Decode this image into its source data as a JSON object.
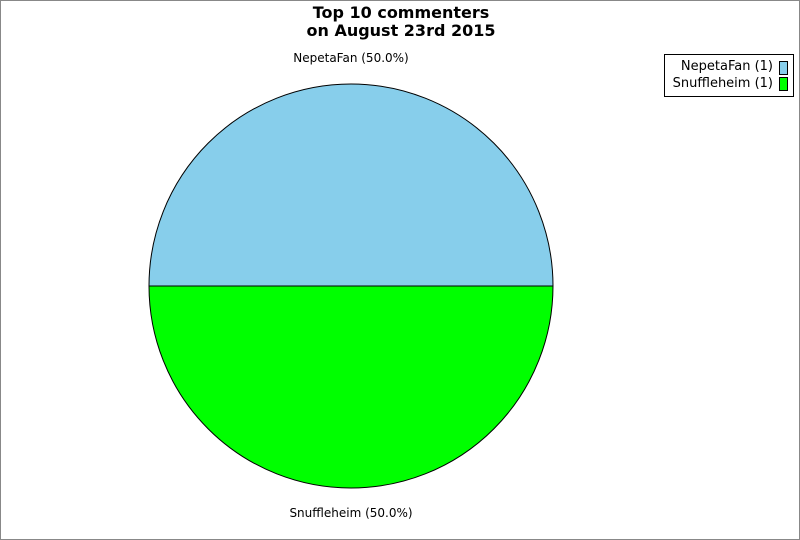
{
  "chart_data": {
    "type": "pie",
    "title": [
      "Top 10 commenters",
      "on August 23rd 2015"
    ],
    "legend_position": "top-right",
    "slices": [
      {
        "name": "NepetaFan",
        "value": 1,
        "label": "NepetaFan (50.0%)",
        "legend": "NepetaFan (1)",
        "color": "#87ceeb"
      },
      {
        "name": "Snuffleheim",
        "value": 1,
        "label": "Snuffleheim (50.0%)",
        "legend": "Snuffleheim (1)",
        "color": "#00ff00"
      }
    ]
  }
}
